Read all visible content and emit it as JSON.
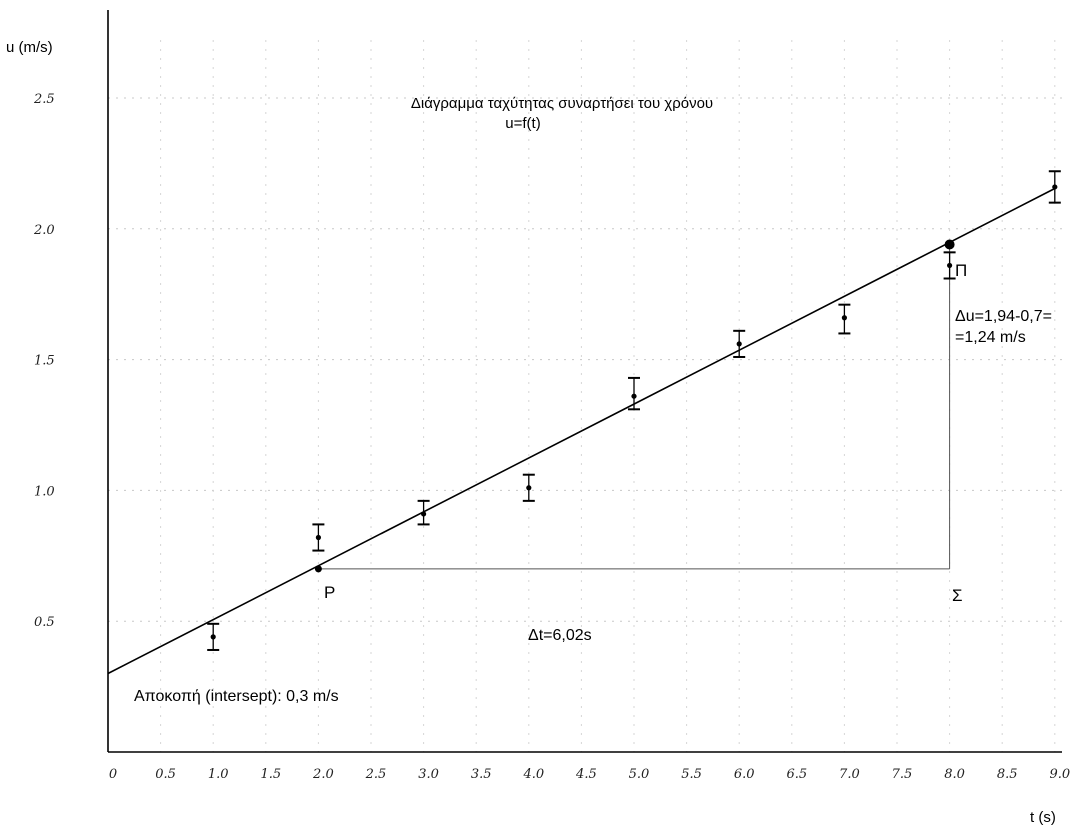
{
  "chart_data": {
    "type": "scatter",
    "title": "Διάγραμμα ταχύτητας συναρτήσει του χρόνου",
    "subtitle": "u=f(t)",
    "ylabel": "u (m/s)",
    "xlabel": "t (s)",
    "xlim": [
      0,
      9.0
    ],
    "ylim": [
      0,
      2.8
    ],
    "grid": true,
    "x_tick_labels": [
      "0",
      "0.5",
      "1.0",
      "1.5",
      "2.0",
      "2.5",
      "3.0",
      "3.5",
      "4.0",
      "4.5",
      "5.0",
      "5.5",
      "6.0",
      "6.5",
      "7.0",
      "7.5",
      "8.0",
      "8.5",
      "9.0"
    ],
    "x_tick_values": [
      0,
      0.5,
      1.0,
      1.5,
      2.0,
      2.5,
      3.0,
      3.5,
      4.0,
      4.5,
      5.0,
      5.5,
      6.0,
      6.5,
      7.0,
      7.5,
      8.0,
      8.5,
      9.0
    ],
    "y_tick_labels": [
      "0.5",
      "1.0",
      "1.5",
      "2.0",
      "2.5"
    ],
    "y_tick_values": [
      0.5,
      1.0,
      1.5,
      2.0,
      2.5
    ],
    "series": [
      {
        "x": [
          1.0,
          2.0,
          3.0,
          4.0,
          5.0,
          6.0,
          7.0,
          8.0,
          9.0
        ],
        "y": [
          0.44,
          0.82,
          0.91,
          1.01,
          1.36,
          1.56,
          1.66,
          1.86,
          2.16
        ],
        "y_err_low": [
          0.39,
          0.77,
          0.87,
          0.96,
          1.31,
          1.51,
          1.6,
          1.81,
          2.1
        ],
        "y_err_high": [
          0.49,
          0.87,
          0.96,
          1.06,
          1.43,
          1.61,
          1.71,
          1.91,
          2.22
        ]
      }
    ],
    "fit_line": {
      "intercept": 0.3,
      "slope": 0.206,
      "x_range": [
        0,
        9.0
      ]
    },
    "annotations": {
      "point_p": {
        "label": "P",
        "x": 2.0,
        "y": 0.7
      },
      "point_pi": {
        "label": "Π",
        "x": 8.0,
        "y": 1.94
      },
      "corner_sigma": {
        "label": "Σ",
        "x": 8.0,
        "y": 0.7
      },
      "delta_t": "Δt=6,02s",
      "delta_u_line1": "Δu=1,94-0,7=",
      "delta_u_line2": "=1,24 m/s",
      "intercept": "Αποκοπή (intersept): 0,3 m/s"
    }
  }
}
